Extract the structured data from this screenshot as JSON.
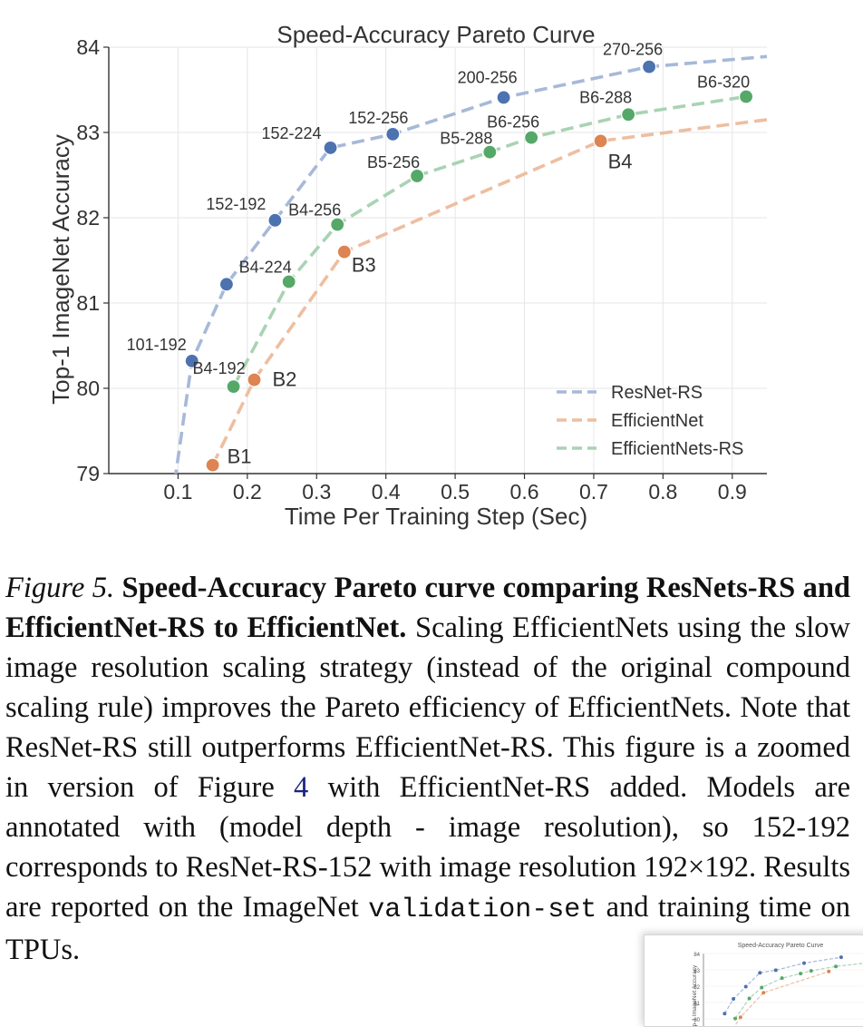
{
  "chart_data": {
    "type": "line",
    "title": "Speed-Accuracy Pareto Curve",
    "xlabel": "Time Per Training Step (Sec)",
    "ylabel": "Top-1 ImageNet Accuracy",
    "xlim": [
      0.0,
      0.95
    ],
    "ylim": [
      79,
      84
    ],
    "xticks": [
      "0.1",
      "0.2",
      "0.3",
      "0.4",
      "0.5",
      "0.6",
      "0.7",
      "0.8",
      "0.9"
    ],
    "yticks": [
      "79",
      "80",
      "81",
      "82",
      "83",
      "84"
    ],
    "grid": true,
    "legend_position": "lower-right",
    "series": [
      {
        "name": "ResNet-RS",
        "color": "#4C72B0",
        "line_color": "#A7B9D8",
        "points": [
          {
            "label": "101-192",
            "x": 0.12,
            "y": 80.32
          },
          {
            "label": "",
            "x": 0.17,
            "y": 81.22
          },
          {
            "label": "152-192",
            "x": 0.24,
            "y": 81.97
          },
          {
            "label": "152-224",
            "x": 0.32,
            "y": 82.82
          },
          {
            "label": "152-256",
            "x": 0.41,
            "y": 82.98
          },
          {
            "label": "200-256",
            "x": 0.57,
            "y": 83.41
          },
          {
            "label": "270-256",
            "x": 0.78,
            "y": 83.77
          }
        ],
        "tail_start": [
          0.095,
          78.9
        ],
        "tail_end": [
          0.95,
          83.89
        ]
      },
      {
        "name": "EfficientNet",
        "color": "#DD8452",
        "line_color": "#EEBEA0",
        "points": [
          {
            "label": "B1",
            "x": 0.15,
            "y": 79.1
          },
          {
            "label": "B2",
            "x": 0.21,
            "y": 80.1
          },
          {
            "label": "B3",
            "x": 0.34,
            "y": 81.6
          },
          {
            "label": "B4",
            "x": 0.71,
            "y": 82.9
          }
        ],
        "tail_end": [
          0.95,
          83.15
        ]
      },
      {
        "name": "EfficientNets-RS",
        "color": "#55A868",
        "line_color": "#A9D3B4",
        "points": [
          {
            "label": "B4-192",
            "x": 0.18,
            "y": 80.02
          },
          {
            "label": "B4-224",
            "x": 0.26,
            "y": 81.25
          },
          {
            "label": "B4-256",
            "x": 0.33,
            "y": 81.92
          },
          {
            "label": "B5-256",
            "x": 0.445,
            "y": 82.49
          },
          {
            "label": "B5-288",
            "x": 0.55,
            "y": 82.77
          },
          {
            "label": "B6-256",
            "x": 0.61,
            "y": 82.94
          },
          {
            "label": "B6-288",
            "x": 0.75,
            "y": 83.21
          },
          {
            "label": "B6-320",
            "x": 0.92,
            "y": 83.42
          }
        ]
      }
    ]
  },
  "caption": {
    "figure_label": "Figure 5.",
    "bold_title": "Speed-Accuracy Pareto curve comparing ResNets-RS and EfficientNet-RS to EfficientNet.",
    "body_1": "Scaling EfficientNets using the slow image resolution scaling strategy (instead of the original compound scaling rule) improves the Pareto efficiency of EfficientNets. Note that ResNet-RS still outperforms EfficientNet-RS. This figure is a zoomed in version of Figure",
    "figure_ref": "4",
    "body_2": "with EfficientNet-RS added. Models are annotated with (model depth - image resolution), so 152-192 corresponds to ResNet-RS-152 with image resolution 192×192. Results are reported on the ImageNet",
    "code_term": "validation-set",
    "body_3": "and training time",
    "body_4": "on TPUs."
  }
}
